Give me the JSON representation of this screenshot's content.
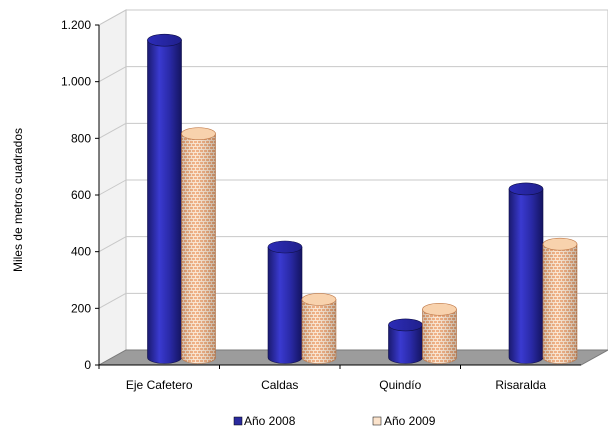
{
  "chart_data": {
    "type": "bar",
    "title": "",
    "ylabel": "Miles de metros cuadrados",
    "xlabel": "",
    "ylim": [
      0,
      1200
    ],
    "yticks": [
      0,
      200,
      400,
      600,
      800,
      1000,
      1200
    ],
    "ytick_labels": [
      "0",
      "200",
      "400",
      "600",
      "800",
      "1.000",
      "1.200"
    ],
    "categories": [
      "Eje Cafetero",
      "Caldas",
      "Quindío",
      "Risaralda"
    ],
    "series": [
      {
        "name": "Año 2008",
        "color": "#2a2a9e",
        "pattern": "solid",
        "values": [
          1120,
          390,
          115,
          595
        ]
      },
      {
        "name": "Año 2009",
        "color": "#f4b98a",
        "pattern": "brick",
        "values": [
          790,
          205,
          170,
          400
        ]
      }
    ],
    "grid": true,
    "style": "3d-cylinder",
    "legend_position": "bottom"
  }
}
